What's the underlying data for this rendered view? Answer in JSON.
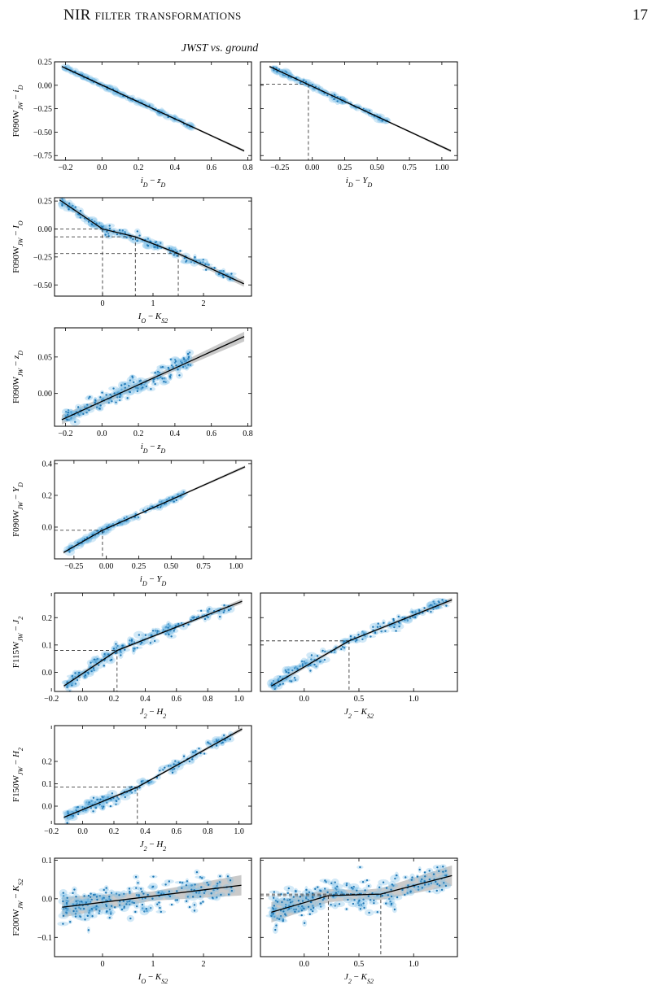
{
  "page_header": {
    "title": "NIR filter transformations",
    "page_number": "17"
  },
  "figure_title": "JWST vs. ground",
  "chart_data": [
    {
      "id": "p1",
      "type": "scatter",
      "xlabel": "i_D − z_D",
      "ylabel": "F090W_JW − i_D",
      "xlim": [
        -0.26,
        0.82
      ],
      "ylim": [
        -0.8,
        0.25
      ],
      "xticks": [
        -0.2,
        0.0,
        0.2,
        0.4,
        0.6,
        0.8
      ],
      "xticklabels": [
        "−0.2",
        "0.0",
        "0.2",
        "0.4",
        "0.6",
        "0.8"
      ],
      "yticks": [
        0.25,
        0.0,
        -0.25,
        -0.5,
        -0.75
      ],
      "yticklabels": [
        "0.25",
        "0.00",
        "−0.25",
        "−0.50",
        "−0.75"
      ],
      "fit": [
        [
          -0.22,
          0.2
        ],
        [
          0.78,
          -0.7
        ]
      ],
      "band": 0.006,
      "scatter": 0.008,
      "xrange": [
        -0.2,
        0.5
      ],
      "npts": 140,
      "breaks": []
    },
    {
      "id": "p2",
      "type": "scatter",
      "xlabel": "i_D − Y_D",
      "ylabel": "",
      "xlim": [
        -0.4,
        1.12
      ],
      "ylim": [
        -0.8,
        0.25
      ],
      "xticks": [
        -0.25,
        0.0,
        0.25,
        0.5,
        0.75,
        1.0
      ],
      "xticklabels": [
        "−0.25",
        "0.00",
        "0.25",
        "0.50",
        "0.75",
        "1.00"
      ],
      "yticks": [
        0.25,
        0.0,
        -0.25,
        -0.5,
        -0.75
      ],
      "yticklabels": [],
      "fit": [
        [
          -0.33,
          0.2
        ],
        [
          1.07,
          -0.7
        ]
      ],
      "band": 0.006,
      "scatter": 0.01,
      "xrange": [
        -0.3,
        0.6
      ],
      "npts": 140,
      "breaks": [
        [
          -0.03,
          0.01
        ]
      ]
    },
    {
      "id": "p3",
      "type": "scatter",
      "xlabel": "I_O − K_S2",
      "ylabel": "F090W_JW − I_O",
      "xlim": [
        -0.95,
        2.95
      ],
      "ylim": [
        -0.6,
        0.28
      ],
      "xticks": [
        0,
        1,
        2
      ],
      "xticklabels": [
        "0",
        "1",
        "2"
      ],
      "yticks": [
        0.25,
        0.0,
        -0.25,
        -0.5
      ],
      "yticklabels": [
        "0.25",
        "0.00",
        "−0.25",
        "−0.50"
      ],
      "fit": [
        [
          -0.85,
          0.26
        ],
        [
          0.0,
          0.0
        ],
        [
          0.65,
          -0.07
        ],
        [
          1.5,
          -0.22
        ],
        [
          2.8,
          -0.49
        ]
      ],
      "band": 0.012,
      "scatter": 0.02,
      "xrange": [
        -0.8,
        2.6
      ],
      "npts": 160,
      "breaks": [
        [
          0.0,
          0.0
        ],
        [
          0.65,
          -0.07
        ],
        [
          1.5,
          -0.22
        ]
      ]
    },
    {
      "id": "p4",
      "type": "scatter",
      "xlabel": "i_D − z_D",
      "ylabel": "F090W_JW − z_D",
      "xlim": [
        -0.26,
        0.82
      ],
      "ylim": [
        -0.045,
        0.09
      ],
      "xticks": [
        -0.2,
        0.0,
        0.2,
        0.4,
        0.6,
        0.8
      ],
      "xticklabels": [
        "−0.2",
        "0.0",
        "0.2",
        "0.4",
        "0.6",
        "0.8"
      ],
      "yticks": [
        0.05,
        0.0
      ],
      "yticklabels": [
        "0.05",
        "0.00"
      ],
      "fit": [
        [
          -0.22,
          -0.036
        ],
        [
          0.78,
          0.078
        ]
      ],
      "band": 0.003,
      "scatter": 0.006,
      "xrange": [
        -0.2,
        0.5
      ],
      "npts": 160,
      "breaks": []
    },
    {
      "id": "p5",
      "type": "scatter",
      "xlabel": "i_D − Y_D",
      "ylabel": "F090W_JW − Y_D",
      "xlim": [
        -0.4,
        1.12
      ],
      "ylim": [
        -0.2,
        0.42
      ],
      "xticks": [
        -0.25,
        0.0,
        0.25,
        0.5,
        0.75,
        1.0
      ],
      "xticklabels": [
        "−0.25",
        "0.00",
        "0.25",
        "0.50",
        "0.75",
        "1.00"
      ],
      "yticks": [
        0.4,
        0.2,
        0.0
      ],
      "yticklabels": [
        "0.4",
        "0.2",
        "0.0"
      ],
      "fit": [
        [
          -0.33,
          -0.16
        ],
        [
          -0.03,
          -0.02
        ],
        [
          1.07,
          0.38
        ]
      ],
      "band": 0.004,
      "scatter": 0.008,
      "xrange": [
        -0.3,
        0.6
      ],
      "npts": 150,
      "breaks": [
        [
          -0.03,
          -0.02
        ]
      ]
    },
    {
      "id": "p6",
      "type": "scatter",
      "xlabel": "J_2 − H_2",
      "ylabel": "F115W_JW − J_2",
      "xlim": [
        -0.18,
        1.08
      ],
      "ylim": [
        -0.07,
        0.29
      ],
      "xticks": [
        -0.2,
        0.0,
        0.2,
        0.4,
        0.6,
        0.8,
        1.0
      ],
      "xticklabels": [
        "−0.2",
        "0.0",
        "0.2",
        "0.4",
        "0.6",
        "0.8",
        "1.0"
      ],
      "yticks": [
        0.2,
        0.1,
        0.0
      ],
      "yticklabels": [
        "0.2",
        "0.1",
        "0.0"
      ],
      "fit": [
        [
          -0.12,
          -0.05
        ],
        [
          0.22,
          0.08
        ],
        [
          1.02,
          0.26
        ]
      ],
      "band": 0.004,
      "scatter": 0.012,
      "xrange": [
        -0.1,
        0.95
      ],
      "npts": 170,
      "breaks": [
        [
          0.22,
          0.08
        ]
      ]
    },
    {
      "id": "p7",
      "type": "scatter",
      "xlabel": "J_2 − K_S2",
      "ylabel": "",
      "xlim": [
        -0.4,
        1.4
      ],
      "ylim": [
        -0.07,
        0.29
      ],
      "xticks": [
        0.0,
        0.5,
        1.0
      ],
      "xticklabels": [
        "0.0",
        "0.5",
        "1.0"
      ],
      "yticks": [
        0.2,
        0.1,
        0.0
      ],
      "yticklabels": [],
      "fit": [
        [
          -0.3,
          -0.05
        ],
        [
          0.41,
          0.115
        ],
        [
          1.35,
          0.265
        ]
      ],
      "band": 0.004,
      "scatter": 0.012,
      "xrange": [
        -0.3,
        1.3
      ],
      "npts": 170,
      "breaks": [
        [
          0.41,
          0.115
        ]
      ]
    },
    {
      "id": "p8",
      "type": "scatter",
      "xlabel": "J_2 − H_2",
      "ylabel": "F150W_JW − H_2",
      "xlim": [
        -0.18,
        1.08
      ],
      "ylim": [
        -0.08,
        0.36
      ],
      "xticks": [
        -0.2,
        0.0,
        0.2,
        0.4,
        0.6,
        0.8,
        1.0
      ],
      "xticklabels": [
        "−0.2",
        "0.0",
        "0.2",
        "0.4",
        "0.6",
        "0.8",
        "1.0"
      ],
      "yticks": [
        0.2,
        0.1,
        0.0
      ],
      "yticklabels": [
        "0.2",
        "0.1",
        "0.0"
      ],
      "fit": [
        [
          -0.12,
          -0.05
        ],
        [
          0.35,
          0.085
        ],
        [
          1.02,
          0.345
        ]
      ],
      "band": 0.004,
      "scatter": 0.012,
      "xrange": [
        -0.1,
        0.95
      ],
      "npts": 170,
      "breaks": [
        [
          0.35,
          0.085
        ]
      ]
    },
    {
      "id": "p9",
      "type": "scatter",
      "xlabel": "I_O − K_S2",
      "ylabel": "F200W_JW − K_S2",
      "xlim": [
        -0.95,
        2.95
      ],
      "ylim": [
        -0.15,
        0.105
      ],
      "xticks": [
        0,
        1,
        2
      ],
      "xticklabels": [
        "0",
        "1",
        "2"
      ],
      "yticks": [
        0.1,
        0.0,
        -0.1
      ],
      "yticklabels": [
        "0.1",
        "0.0",
        "−0.1"
      ],
      "fit": [
        [
          -0.8,
          -0.022
        ],
        [
          2.75,
          0.035
        ]
      ],
      "band": 0.012,
      "scatter": 0.02,
      "xrange": [
        -0.8,
        2.6
      ],
      "npts": 220,
      "breaks": []
    },
    {
      "id": "p10",
      "type": "scatter",
      "xlabel": "J_2 − K_S2",
      "ylabel": "",
      "xlim": [
        -0.4,
        1.4
      ],
      "ylim": [
        -0.15,
        0.105
      ],
      "xticks": [
        0.0,
        0.5,
        1.0
      ],
      "xticklabels": [
        "0.0",
        "0.5",
        "1.0"
      ],
      "yticks": [
        0.1,
        0.0,
        -0.1
      ],
      "yticklabels": [],
      "fit": [
        [
          -0.3,
          -0.035
        ],
        [
          0.22,
          0.008
        ],
        [
          0.7,
          0.012
        ],
        [
          1.35,
          0.06
        ]
      ],
      "band": 0.012,
      "scatter": 0.02,
      "xrange": [
        -0.3,
        1.3
      ],
      "npts": 220,
      "breaks": [
        [
          0.22,
          0.008
        ],
        [
          0.7,
          0.012
        ]
      ]
    }
  ]
}
